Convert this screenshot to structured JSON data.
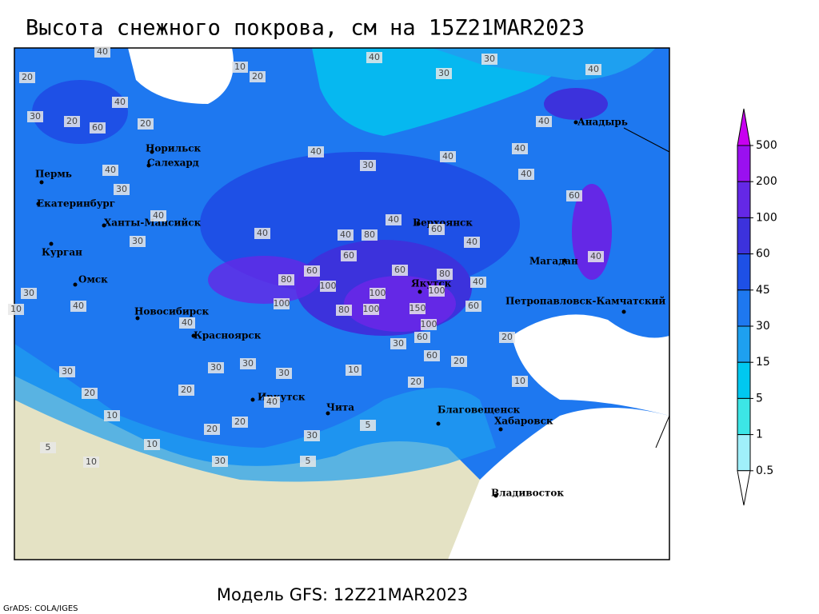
{
  "header": {
    "title": "Высота снежного покрова, см на 15Z21MAR2023",
    "subtitle": "Модель GFS: 12Z21MAR2023",
    "credit": "GrADS: COLA/IGES"
  },
  "legend": {
    "levels": [
      500,
      200,
      100,
      60,
      45,
      30,
      15,
      5,
      1,
      0.5
    ],
    "colors": [
      "#c800f0",
      "#9a10f0",
      "#6428e6",
      "#3c32dc",
      "#1e50e6",
      "#1e78f0",
      "#1ea0f0",
      "#00c8f0",
      "#3ce6e6",
      "#a0f0fa",
      "#ffffff"
    ]
  },
  "cities": [
    "Пермь",
    "Екатеринбург",
    "Ханты-Мансийск",
    "Курган",
    "Омск",
    "Новосибирск",
    "Красноярск",
    "Иркутск",
    "Чита",
    "Норильск",
    "Салехард",
    "Анадырь",
    "Верхоянск",
    "Якутск",
    "Магадан",
    "Петропавловск-Камчатский",
    "Благовещенск",
    "Хабаровск",
    "Владивосток"
  ],
  "contour_labels": [
    40,
    10,
    20,
    40,
    30,
    30,
    40,
    20,
    40,
    30,
    60,
    20,
    20,
    40,
    40,
    40,
    40,
    30,
    40,
    40,
    30,
    60,
    40,
    60,
    40,
    40,
    40,
    80,
    40,
    40,
    30,
    60,
    60,
    60,
    80,
    40,
    80,
    100,
    100,
    100,
    150,
    100,
    80,
    100,
    60,
    100,
    60,
    30,
    20,
    20,
    60,
    30,
    10,
    30,
    40,
    40,
    30,
    30,
    30,
    10,
    20,
    20,
    20,
    40,
    10,
    20,
    20,
    10,
    10,
    10,
    5,
    30,
    5,
    30,
    5
  ]
}
